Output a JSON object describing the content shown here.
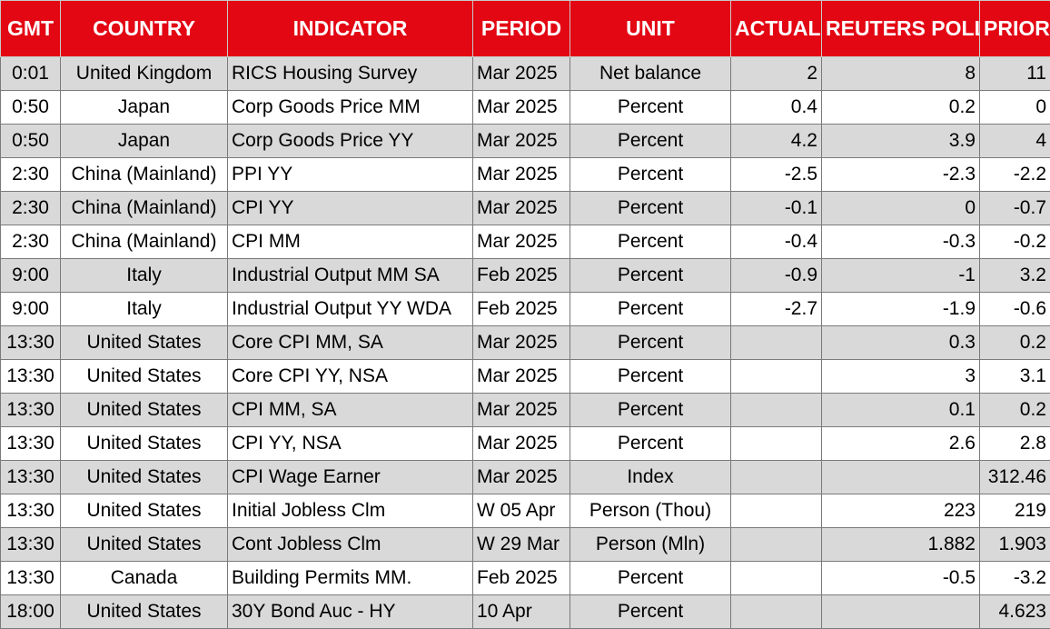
{
  "headers": [
    "GMT",
    "COUNTRY",
    "INDICATOR",
    "PERIOD",
    "UNIT",
    "ACTUAL",
    "REUTERS POLL",
    "PRIOR"
  ],
  "rows": [
    {
      "gmt": "0:01",
      "country": "United Kingdom",
      "indicator": "RICS Housing Survey",
      "period": "Mar 2025",
      "unit": "Net balance",
      "actual": "2",
      "poll": "8",
      "prior": "11"
    },
    {
      "gmt": "0:50",
      "country": "Japan",
      "indicator": "Corp Goods Price MM",
      "period": "Mar 2025",
      "unit": "Percent",
      "actual": "0.4",
      "poll": "0.2",
      "prior": "0"
    },
    {
      "gmt": "0:50",
      "country": "Japan",
      "indicator": "Corp Goods Price YY",
      "period": "Mar 2025",
      "unit": "Percent",
      "actual": "4.2",
      "poll": "3.9",
      "prior": "4"
    },
    {
      "gmt": "2:30",
      "country": "China (Mainland)",
      "indicator": "PPI YY",
      "period": "Mar 2025",
      "unit": "Percent",
      "actual": "-2.5",
      "poll": "-2.3",
      "prior": "-2.2"
    },
    {
      "gmt": "2:30",
      "country": "China (Mainland)",
      "indicator": "CPI YY",
      "period": "Mar 2025",
      "unit": "Percent",
      "actual": "-0.1",
      "poll": "0",
      "prior": "-0.7"
    },
    {
      "gmt": "2:30",
      "country": "China (Mainland)",
      "indicator": "CPI MM",
      "period": "Mar 2025",
      "unit": "Percent",
      "actual": "-0.4",
      "poll": "-0.3",
      "prior": "-0.2"
    },
    {
      "gmt": "9:00",
      "country": "Italy",
      "indicator": "Industrial Output MM SA",
      "period": "Feb 2025",
      "unit": "Percent",
      "actual": "-0.9",
      "poll": "-1",
      "prior": "3.2"
    },
    {
      "gmt": "9:00",
      "country": "Italy",
      "indicator": "Industrial Output YY WDA",
      "period": "Feb 2025",
      "unit": "Percent",
      "actual": "-2.7",
      "poll": "-1.9",
      "prior": "-0.6"
    },
    {
      "gmt": "13:30",
      "country": "United States",
      "indicator": "Core CPI MM, SA",
      "period": "Mar 2025",
      "unit": "Percent",
      "actual": "",
      "poll": "0.3",
      "prior": "0.2"
    },
    {
      "gmt": "13:30",
      "country": "United States",
      "indicator": "Core CPI YY, NSA",
      "period": "Mar 2025",
      "unit": "Percent",
      "actual": "",
      "poll": "3",
      "prior": "3.1"
    },
    {
      "gmt": "13:30",
      "country": "United States",
      "indicator": "CPI MM, SA",
      "period": "Mar 2025",
      "unit": "Percent",
      "actual": "",
      "poll": "0.1",
      "prior": "0.2"
    },
    {
      "gmt": "13:30",
      "country": "United States",
      "indicator": "CPI YY, NSA",
      "period": "Mar 2025",
      "unit": "Percent",
      "actual": "",
      "poll": "2.6",
      "prior": "2.8"
    },
    {
      "gmt": "13:30",
      "country": "United States",
      "indicator": "CPI Wage Earner",
      "period": "Mar 2025",
      "unit": "Index",
      "actual": "",
      "poll": "",
      "prior": "312.46"
    },
    {
      "gmt": "13:30",
      "country": "United States",
      "indicator": "Initial Jobless Clm",
      "period": "W 05 Apr",
      "unit": "Person (Thou)",
      "actual": "",
      "poll": "223",
      "prior": "219"
    },
    {
      "gmt": "13:30",
      "country": "United States",
      "indicator": "Cont Jobless Clm",
      "period": "W 29 Mar",
      "unit": "Person (Mln)",
      "actual": "",
      "poll": "1.882",
      "prior": "1.903"
    },
    {
      "gmt": "13:30",
      "country": "Canada",
      "indicator": "Building Permits MM.",
      "period": "Feb 2025",
      "unit": "Percent",
      "actual": "",
      "poll": "-0.5",
      "prior": "-3.2"
    },
    {
      "gmt": "18:00",
      "country": "United States",
      "indicator": "30Y Bond Auc - HY",
      "period": "10 Apr",
      "unit": "Percent",
      "actual": "",
      "poll": "",
      "prior": "4.623"
    }
  ],
  "colors": {
    "header_bg": "#e30613",
    "header_text": "#ffffff",
    "shade_row": "#d9d9d9",
    "plain_row": "#ffffff",
    "grid": "#7a7a7a"
  }
}
